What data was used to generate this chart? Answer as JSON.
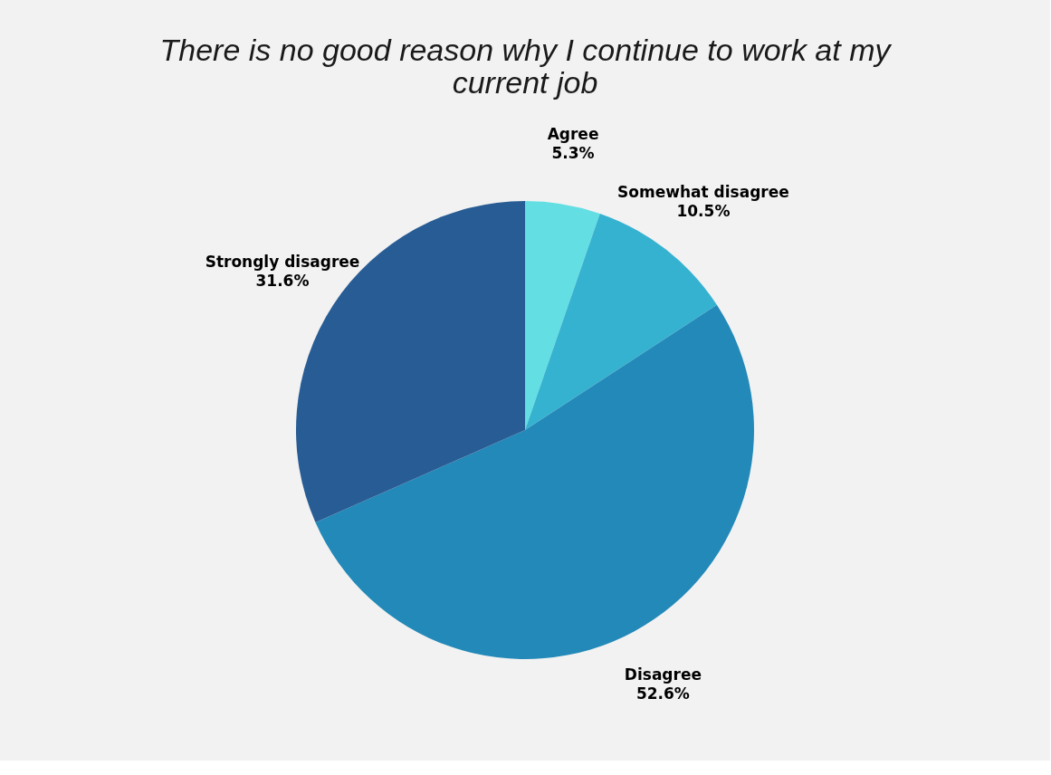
{
  "chart_data": {
    "type": "pie",
    "title": "There is no good reason why I continue to work at my current job",
    "categories": [
      "Agree",
      "Somewhat disagree",
      "Disagree",
      "Strongly disagree"
    ],
    "values": [
      5.3,
      10.5,
      52.6,
      31.6
    ],
    "value_labels": [
      "5.3%",
      "10.5%",
      "52.6%",
      "31.6%"
    ],
    "colors": [
      "#63dfe3",
      "#36b2d1",
      "#2389b8",
      "#285c94"
    ],
    "legend": false
  }
}
